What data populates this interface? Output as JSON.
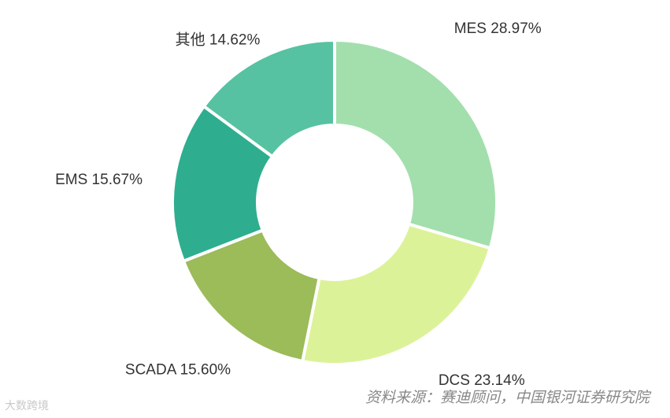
{
  "chart_data": {
    "type": "pie",
    "categories": [
      "MES",
      "DCS",
      "SCADA",
      "EMS",
      "其他"
    ],
    "values": [
      28.97,
      23.14,
      15.6,
      15.67,
      14.62
    ],
    "unit": "%",
    "colors": [
      "#a2dfac",
      "#dcf298",
      "#9cbb59",
      "#2eae8e",
      "#56c2a1"
    ],
    "donut": true,
    "legend": "none"
  },
  "footer": {
    "source": "资料来源：赛迪顾问，中国银河证券研究院",
    "watermark": "大数跨境"
  }
}
